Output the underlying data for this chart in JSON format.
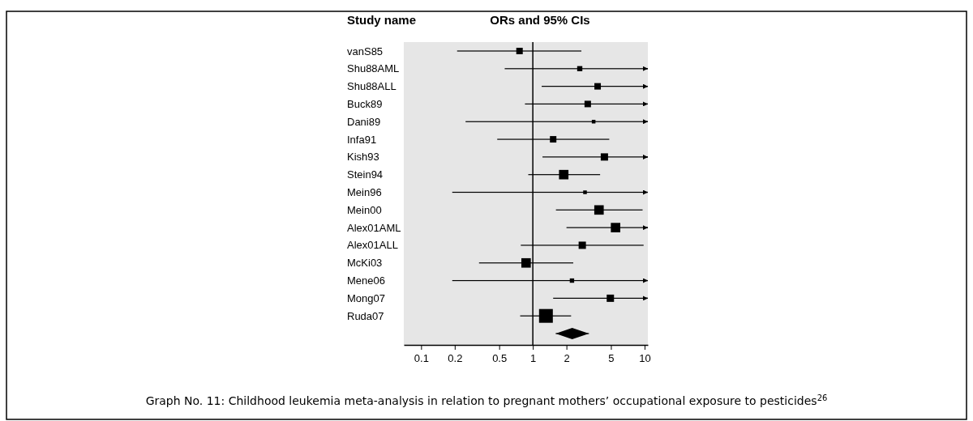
{
  "chart_data": {
    "type": "bubble",
    "orientation": "horizontal",
    "title": "ORs and 95% CIs",
    "ylabel": "Study name",
    "categories": [
      "vanS85",
      "Shu88AML",
      "Shu88ALL",
      "Buck89",
      "Dani89",
      "Infa91",
      "Kish93",
      "Stein94",
      "Mein96",
      "Mein00",
      "Alex01AML",
      "Alex01ALL",
      "McKi03",
      "Mene06",
      "Mong07",
      "Ruda07",
      null
    ],
    "series": [
      {
        "type": "bubble",
        "color": "#000000",
        "marker": "square",
        "values": [
          0.76,
          2.63,
          3.8,
          3.1,
          3.5,
          1.52,
          4.37,
          1.89,
          2.93,
          3.91,
          5.5,
          2.77,
          0.87,
          2.24,
          4.94,
          1.31,
          null
        ],
        "sizes": [
          0.22,
          0.14,
          0.22,
          0.22,
          0.07,
          0.22,
          0.28,
          0.47,
          0.07,
          0.47,
          0.47,
          0.28,
          0.47,
          0.1,
          0.28,
          1,
          null
        ],
        "errors": [
          [
            0.21,
            2.72
          ],
          [
            0.56,
            10.7
          ],
          [
            1.2,
            10.7
          ],
          [
            0.85,
            10.7
          ],
          [
            0.25,
            10.7
          ],
          [
            0.48,
            4.83
          ],
          [
            1.22,
            10.7
          ],
          [
            0.91,
            4.0
          ],
          [
            0.19,
            10.7
          ],
          [
            1.61,
            9.6
          ],
          [
            2.0,
            10.7
          ],
          [
            0.78,
            9.8
          ],
          [
            0.33,
            2.3
          ],
          [
            0.19,
            10.7
          ],
          [
            1.52,
            10.7
          ],
          [
            0.77,
            2.2
          ],
          null
        ]
      },
      {
        "type": "scatter",
        "color": "#000000",
        "marker": "diamond",
        "values": [
          null,
          null,
          null,
          null,
          null,
          null,
          null,
          null,
          null,
          null,
          null,
          null,
          null,
          null,
          null,
          null,
          2.25
        ],
        "errors": [
          null,
          null,
          null,
          null,
          null,
          null,
          null,
          null,
          null,
          null,
          null,
          null,
          null,
          null,
          null,
          null,
          [
            1.6,
            3.18
          ]
        ]
      }
    ],
    "log": "x",
    "xlim": [
      0.07,
      10.7
    ],
    "xticks": [
      0.1,
      0.2,
      0.5,
      1,
      2,
      5,
      10
    ],
    "ref_lines": [
      {
        "axis": "x",
        "value": 1
      }
    ],
    "grid": false,
    "annotations": [
      "Graph No. 11: Childhood leukemia meta-analysis in relation to pregnant mothers’ occupational exposure to pesticides$^{26}$"
    ]
  }
}
